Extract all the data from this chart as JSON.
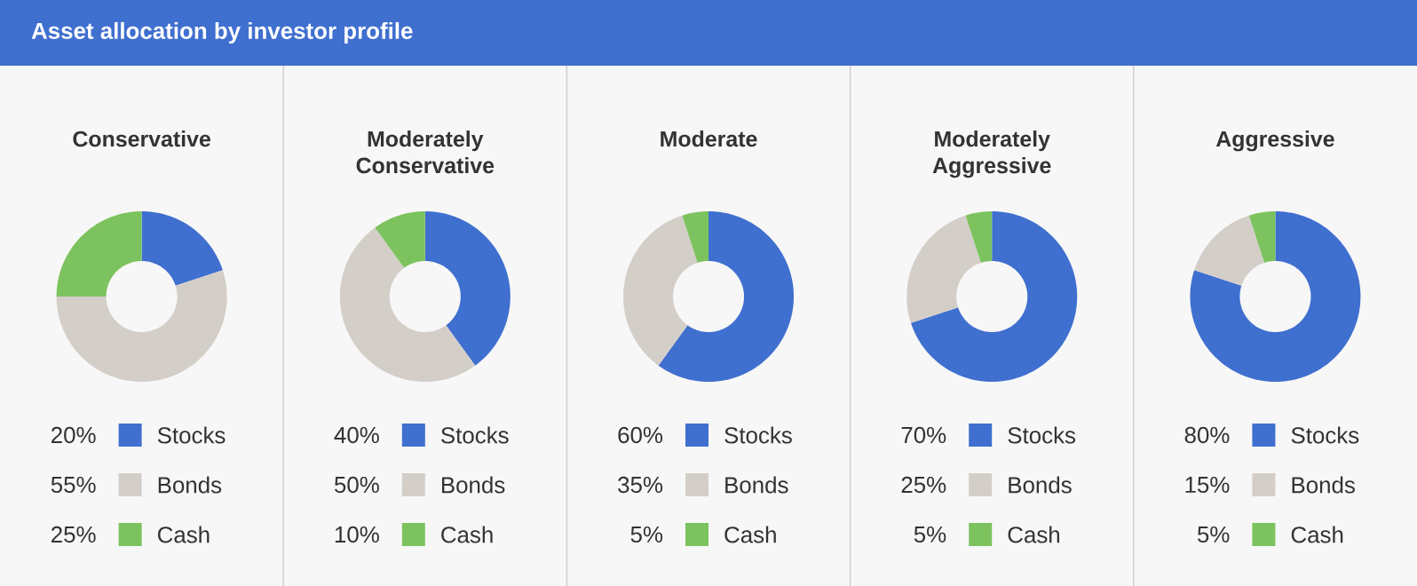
{
  "chart_data": [
    {
      "type": "other",
      "title": "Asset allocation by investor profile"
    },
    {
      "type": "donut",
      "title": "Conservative",
      "categories": [
        "Stocks",
        "Bonds",
        "Cash"
      ],
      "values": [
        20,
        55,
        25
      ],
      "value_labels": [
        "20%",
        "55%",
        "25%"
      ],
      "colors": [
        "#3f6fcf",
        "#d4cec8",
        "#7cc35f"
      ],
      "legend": "bottom"
    },
    {
      "type": "donut",
      "title": "Moderately Conservative",
      "categories": [
        "Stocks",
        "Bonds",
        "Cash"
      ],
      "values": [
        40,
        50,
        10
      ],
      "value_labels": [
        "40%",
        "50%",
        "10%"
      ],
      "colors": [
        "#3f6fcf",
        "#d4cec8",
        "#7cc35f"
      ],
      "legend": "bottom"
    },
    {
      "type": "donut",
      "title": "Moderate",
      "categories": [
        "Stocks",
        "Bonds",
        "Cash"
      ],
      "values": [
        60,
        35,
        5
      ],
      "value_labels": [
        "60%",
        "35%",
        "5%"
      ],
      "colors": [
        "#3f6fcf",
        "#d4cec8",
        "#7cc35f"
      ],
      "legend": "bottom"
    },
    {
      "type": "donut",
      "title": "Moderately Aggressive",
      "categories": [
        "Stocks",
        "Bonds",
        "Cash"
      ],
      "values": [
        70,
        25,
        5
      ],
      "value_labels": [
        "70%",
        "25%",
        "5%"
      ],
      "colors": [
        "#3f6fcf",
        "#d4cec8",
        "#7cc35f"
      ],
      "legend": "bottom"
    },
    {
      "type": "donut",
      "title": "Aggressive",
      "categories": [
        "Stocks",
        "Bonds",
        "Cash"
      ],
      "values": [
        80,
        15,
        5
      ],
      "value_labels": [
        "80%",
        "15%",
        "5%"
      ],
      "colors": [
        "#3f6fcf",
        "#d4cec8",
        "#7cc35f"
      ],
      "legend": "bottom"
    }
  ]
}
